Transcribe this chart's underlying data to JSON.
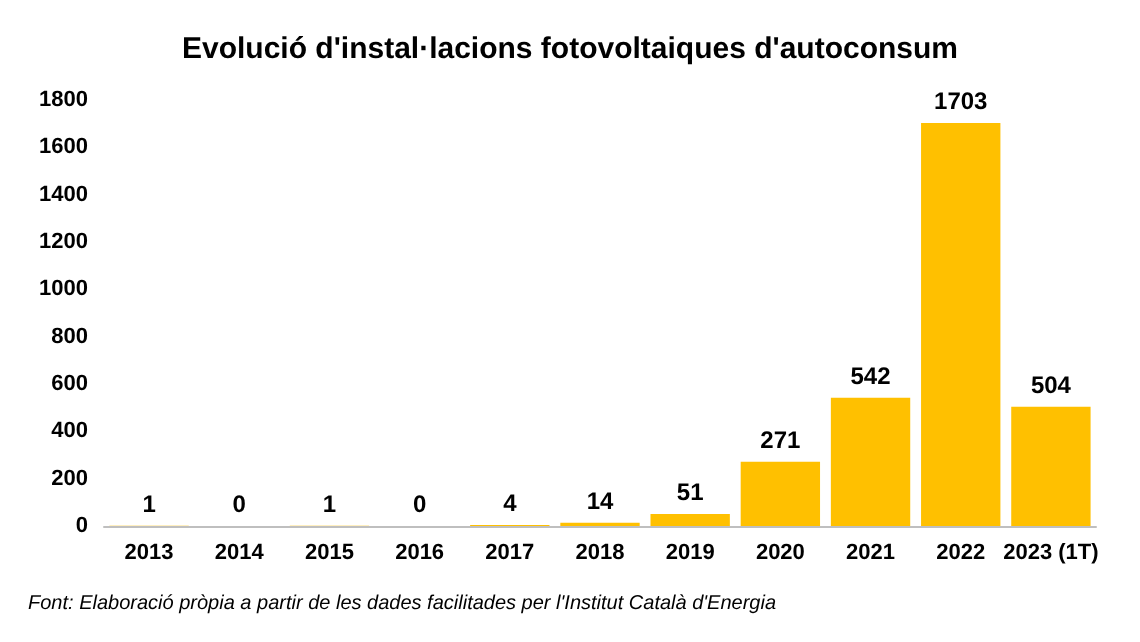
{
  "chart_data": {
    "type": "bar",
    "title": "Evolució d'instal·lacions fotovoltaiques d'autoconsum",
    "categories": [
      "2013",
      "2014",
      "2015",
      "2016",
      "2017",
      "2018",
      "2019",
      "2020",
      "2021",
      "2022",
      "2023 (1T)"
    ],
    "values": [
      1,
      0,
      1,
      0,
      4,
      14,
      51,
      271,
      542,
      1703,
      504
    ],
    "color": "#ffc000",
    "ylim": [
      0,
      1800
    ],
    "yticks": [
      0,
      200,
      400,
      600,
      800,
      1000,
      1200,
      1400,
      1600,
      1800
    ],
    "grid": false,
    "data_labels": true,
    "annotations": [
      "Font: Elaboració pròpia a partir de les dades facilitades per l'Institut Català d'Energia"
    ]
  }
}
